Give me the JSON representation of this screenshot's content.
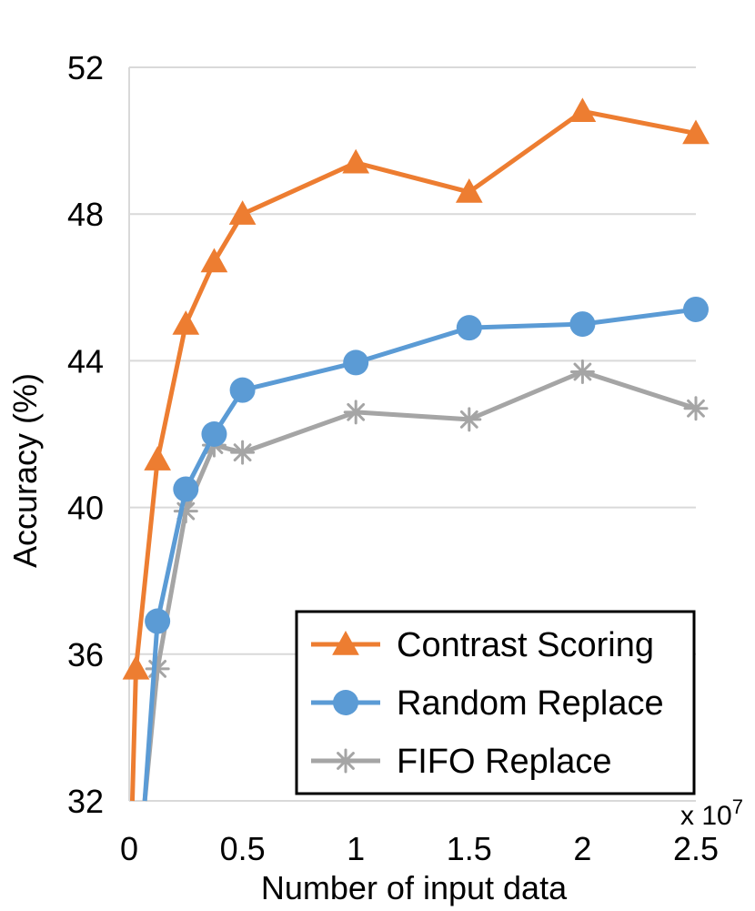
{
  "chart_data": {
    "type": "line",
    "title": "",
    "xlabel": "Number of input data",
    "ylabel": "Accuracy (%)",
    "x_multiplier": "x 10",
    "x_multiplier_exp": "7",
    "xlim": [
      0,
      2.5
    ],
    "ylim": [
      32,
      52
    ],
    "xticks": [
      "0",
      "0.5",
      "1",
      "1.5",
      "2",
      "2.5"
    ],
    "yticks": [
      "32",
      "36",
      "40",
      "44",
      "48",
      "52"
    ],
    "grid": "horizontal",
    "legend_position": "bottom-right",
    "series": [
      {
        "name": "Contrast Scoring",
        "color": "#ED7D31",
        "marker": "triangle",
        "x": [
          0.03,
          0.125,
          0.25,
          0.375,
          0.5,
          1.0,
          1.5,
          2.0,
          2.5
        ],
        "y": [
          35.6,
          41.3,
          45.0,
          46.7,
          48.0,
          49.4,
          48.6,
          50.8,
          50.2
        ]
      },
      {
        "name": "Random Replace",
        "color": "#5B9BD5",
        "marker": "circle",
        "x": [
          0.125,
          0.25,
          0.375,
          0.5,
          1.0,
          1.5,
          2.0,
          2.5
        ],
        "y": [
          36.9,
          40.5,
          42.0,
          43.2,
          43.95,
          44.9,
          45.0,
          45.4
        ]
      },
      {
        "name": "FIFO Replace",
        "color": "#A5A5A5",
        "marker": "asterisk",
        "x": [
          0.125,
          0.25,
          0.375,
          0.5,
          1.0,
          1.5,
          2.0,
          2.5
        ],
        "y": [
          35.6,
          39.9,
          41.7,
          41.5,
          42.6,
          42.4,
          43.7,
          42.7
        ]
      }
    ]
  }
}
